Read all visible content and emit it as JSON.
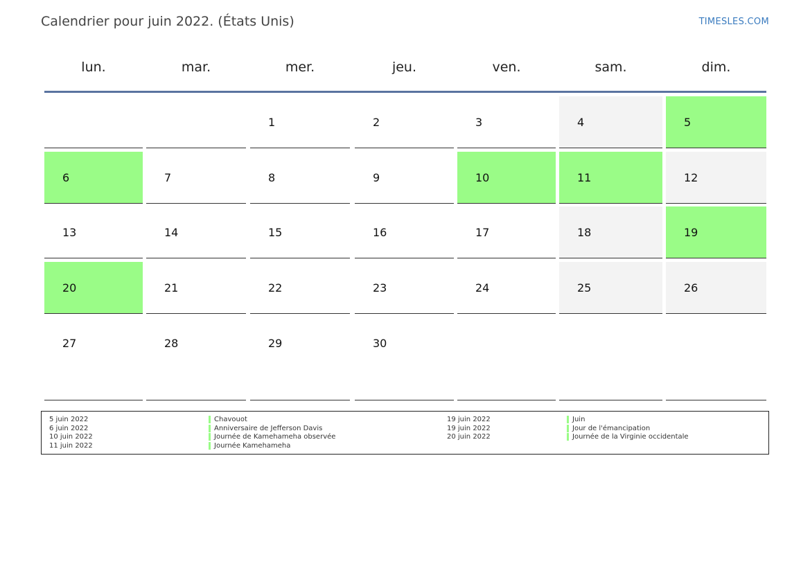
{
  "header": {
    "title": "Calendrier pour juin 2022. (États Unis)",
    "site": "TIMESLES.COM"
  },
  "colors": {
    "holiday": "#9afc87",
    "weekend": "#f3f3f3",
    "header_line": "#5a73a0",
    "link": "#3a7bbf"
  },
  "weekdays": [
    "lun.",
    "mar.",
    "mer.",
    "jeu.",
    "ven.",
    "sam.",
    "dim."
  ],
  "weeks": [
    [
      {
        "d": ""
      },
      {
        "d": ""
      },
      {
        "d": "1"
      },
      {
        "d": "2"
      },
      {
        "d": "3"
      },
      {
        "d": "4",
        "t": "weekend"
      },
      {
        "d": "5",
        "t": "holiday"
      }
    ],
    [
      {
        "d": "6",
        "t": "holiday"
      },
      {
        "d": "7"
      },
      {
        "d": "8"
      },
      {
        "d": "9"
      },
      {
        "d": "10",
        "t": "holiday"
      },
      {
        "d": "11",
        "t": "holiday"
      },
      {
        "d": "12",
        "t": "weekend"
      }
    ],
    [
      {
        "d": "13"
      },
      {
        "d": "14"
      },
      {
        "d": "15"
      },
      {
        "d": "16"
      },
      {
        "d": "17"
      },
      {
        "d": "18",
        "t": "weekend"
      },
      {
        "d": "19",
        "t": "holiday"
      }
    ],
    [
      {
        "d": "20",
        "t": "holiday"
      },
      {
        "d": "21"
      },
      {
        "d": "22"
      },
      {
        "d": "23"
      },
      {
        "d": "24"
      },
      {
        "d": "25",
        "t": "weekend"
      },
      {
        "d": "26",
        "t": "weekend"
      }
    ],
    [
      {
        "d": "27"
      },
      {
        "d": "28"
      },
      {
        "d": "29"
      },
      {
        "d": "30"
      },
      {
        "d": ""
      },
      {
        "d": ""
      },
      {
        "d": ""
      }
    ]
  ],
  "legend": {
    "left": [
      {
        "date": "5 juin 2022",
        "name": "Chavouot"
      },
      {
        "date": "6 juin 2022",
        "name": "Anniversaire de Jefferson Davis"
      },
      {
        "date": "10 juin 2022",
        "name": "Journée de Kamehameha observée"
      },
      {
        "date": "11 juin 2022",
        "name": "Journée Kamehameha"
      }
    ],
    "right": [
      {
        "date": "19 juin 2022",
        "name": "Juin"
      },
      {
        "date": "19 juin 2022",
        "name": "Jour de l'émancipation"
      },
      {
        "date": "20 juin 2022",
        "name": "Journée de la Virginie occidentale"
      }
    ]
  }
}
